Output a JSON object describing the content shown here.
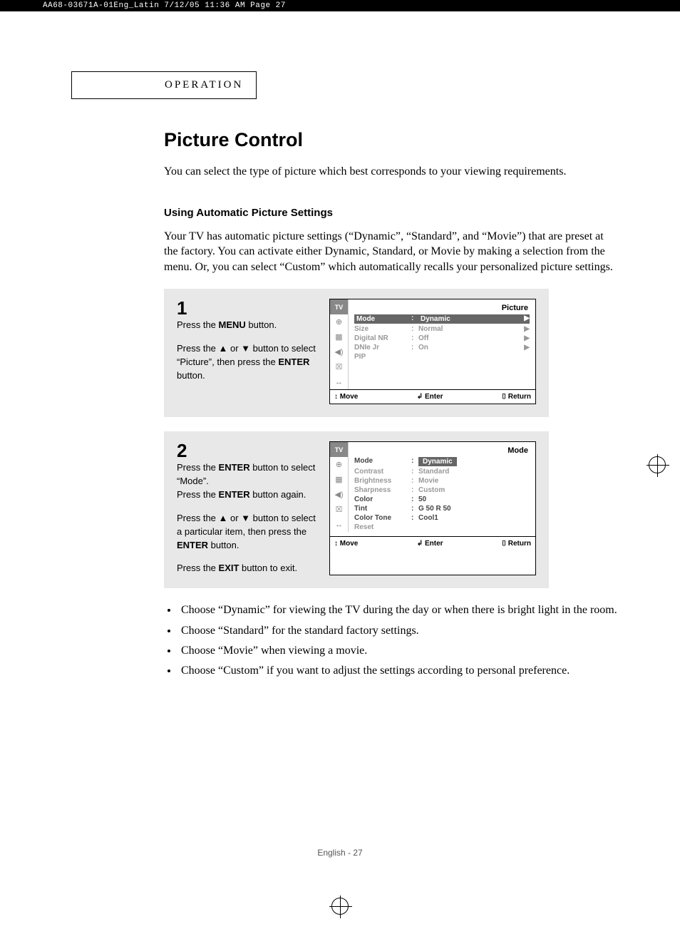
{
  "print_header": "AA68-03671A-01Eng_Latin  7/12/05  11:36 AM  Page 27",
  "chapter": "OPERATION",
  "title": "Picture Control",
  "intro": "You can select the type of picture which best corresponds to your viewing requirements.",
  "subsection": "Using Automatic Picture Settings",
  "body": "Your TV has automatic picture settings (“Dynamic”, “Standard”, and “Movie”) that are preset at the factory. You can activate either Dynamic, Standard, or Movie by making a selection from the menu. Or, you can select “Custom” which automatically recalls your personalized picture settings.",
  "step1": {
    "num": "1",
    "line1_a": "Press the ",
    "line1_b": "MENU",
    "line1_c": " button.",
    "line2_a": "Press the ▲ or ▼ button to select “Picture”, then press the ",
    "line2_b": "ENTER",
    "line2_c": " button."
  },
  "step2": {
    "num": "2",
    "p1_a": "Press the ",
    "p1_b": "ENTER",
    "p1_c": " button to select “Mode”.",
    "p2_a": "Press the ",
    "p2_b": "ENTER",
    "p2_c": " button again.",
    "p3_a": "Press the ▲ or ▼ button to select a particular item, then press the ",
    "p3_b": "ENTER",
    "p3_c": " button.",
    "p4_a": "Press the ",
    "p4_b": "EXIT",
    "p4_c": " button to exit."
  },
  "osd1": {
    "title": "Picture",
    "rows": [
      {
        "label": "Mode",
        "val": "Dynamic",
        "hl": true
      },
      {
        "label": "Size",
        "val": "Normal"
      },
      {
        "label": "Digital NR",
        "val": "Off"
      },
      {
        "label": "DNIe Jr",
        "val": "On"
      },
      {
        "label": "PIP",
        "val": ""
      }
    ],
    "footer": {
      "move": "Move",
      "enter": "Enter",
      "return": "Return"
    }
  },
  "osd2": {
    "title": "Mode",
    "rows": [
      {
        "label": "Mode",
        "val": "Dynamic",
        "hlval": true,
        "dark": true
      },
      {
        "label": "Contrast",
        "val": "Standard"
      },
      {
        "label": "Brightness",
        "val": "Movie"
      },
      {
        "label": "Sharpness",
        "val": "Custom"
      },
      {
        "label": "Color",
        "val": "         50",
        "dark": true
      },
      {
        "label": "Tint",
        "val": "G 50    R 50",
        "dark": true
      },
      {
        "label": "Color Tone",
        "val": "Cool1",
        "dark": true
      },
      {
        "label": "Reset",
        "val": ""
      }
    ],
    "footer": {
      "move": "Move",
      "enter": "Enter",
      "return": "Return"
    }
  },
  "notes": [
    "Choose “Dynamic” for viewing the TV during the day or when there is bright light in the room.",
    "Choose “Standard” for the standard factory settings.",
    "Choose “Movie” when viewing a movie.",
    "Choose “Custom” if you want to adjust the settings according to personal preference."
  ],
  "footer_page": "English - 27",
  "icons": {
    "tv": "TV",
    "input": "⊕",
    "pic": "▦",
    "sound": "◀)",
    "chan": "☒",
    "setup": "↔︎"
  },
  "footer_glyphs": {
    "move": "↕",
    "enter": "↲",
    "return": "⌷"
  }
}
